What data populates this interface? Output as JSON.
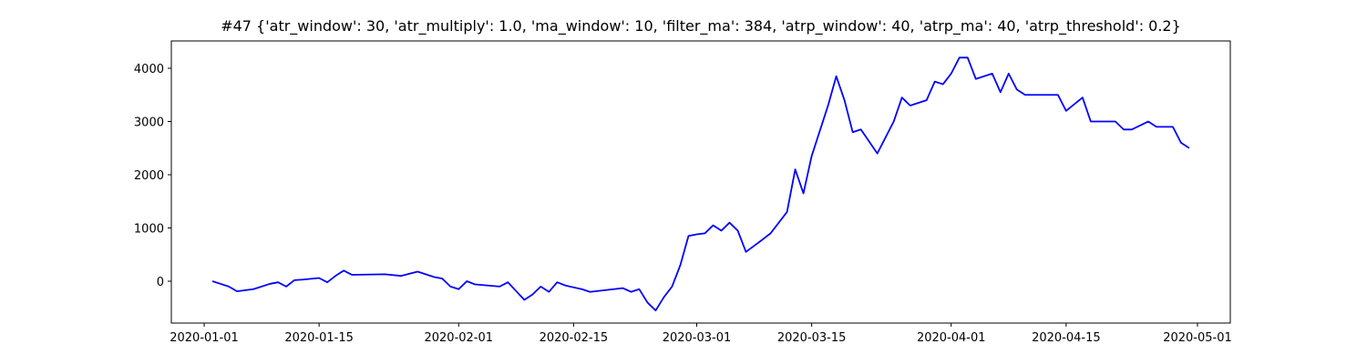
{
  "chart_data": {
    "type": "line",
    "title": "#47 {'atr_window': 30, 'atr_multiply': 1.0, 'ma_window': 10, 'filter_ma': 384, 'atrp_window': 40, 'atrp_ma': 40, 'atrp_threshold': 0.2}",
    "x": [
      "2020-01-02",
      "2020-01-03",
      "2020-01-04",
      "2020-01-05",
      "2020-01-07",
      "2020-01-08",
      "2020-01-09",
      "2020-01-10",
      "2020-01-11",
      "2020-01-12",
      "2020-01-13",
      "2020-01-15",
      "2020-01-16",
      "2020-01-17",
      "2020-01-18",
      "2020-01-19",
      "2020-01-23",
      "2020-01-25",
      "2020-01-27",
      "2020-01-29",
      "2020-01-30",
      "2020-01-31",
      "2020-02-01",
      "2020-02-02",
      "2020-02-03",
      "2020-02-06",
      "2020-02-07",
      "2020-02-09",
      "2020-02-10",
      "2020-02-11",
      "2020-02-12",
      "2020-02-13",
      "2020-02-14",
      "2020-02-16",
      "2020-02-17",
      "2020-02-21",
      "2020-02-22",
      "2020-02-23",
      "2020-02-24",
      "2020-02-25",
      "2020-02-26",
      "2020-02-27",
      "2020-02-28",
      "2020-02-29",
      "2020-03-01",
      "2020-03-02",
      "2020-03-03",
      "2020-03-04",
      "2020-03-05",
      "2020-03-06",
      "2020-03-07",
      "2020-03-09",
      "2020-03-10",
      "2020-03-12",
      "2020-03-13",
      "2020-03-14",
      "2020-03-15",
      "2020-03-17",
      "2020-03-18",
      "2020-03-19",
      "2020-03-20",
      "2020-03-21",
      "2020-03-23",
      "2020-03-24",
      "2020-03-25",
      "2020-03-26",
      "2020-03-27",
      "2020-03-29",
      "2020-03-30",
      "2020-03-31",
      "2020-04-01",
      "2020-04-02",
      "2020-04-03",
      "2020-04-04",
      "2020-04-06",
      "2020-04-07",
      "2020-04-08",
      "2020-04-09",
      "2020-04-10",
      "2020-04-14",
      "2020-04-15",
      "2020-04-17",
      "2020-04-18",
      "2020-04-21",
      "2020-04-22",
      "2020-04-23",
      "2020-04-25",
      "2020-04-26",
      "2020-04-28",
      "2020-04-29",
      "2020-04-30"
    ],
    "series": [
      {
        "color": "#0000ff",
        "values": [
          0,
          -50,
          -100,
          -190,
          -150,
          -100,
          -50,
          -20,
          -100,
          20,
          30,
          60,
          -20,
          100,
          200,
          120,
          130,
          100,
          180,
          80,
          50,
          -100,
          -150,
          0,
          -60,
          -100,
          -20,
          -350,
          -250,
          -100,
          -200,
          -20,
          -80,
          -150,
          -200,
          -130,
          -200,
          -150,
          -400,
          -550,
          -300,
          -100,
          300,
          850,
          880,
          900,
          1050,
          950,
          1100,
          950,
          550,
          780,
          900,
          1300,
          2100,
          1650,
          2350,
          3300,
          3850,
          3400,
          2800,
          2850,
          2400,
          2700,
          3000,
          3450,
          3300,
          3400,
          3750,
          3700,
          3900,
          4200,
          4200,
          3800,
          3900,
          3550,
          3900,
          3600,
          3500,
          3500,
          3200,
          3450,
          3000,
          3000,
          2850,
          2850,
          3000,
          2900,
          2900,
          2600,
          2500
        ]
      }
    ],
    "xlim": [
      "2019-12-28",
      "2020-05-05"
    ],
    "xticks": [
      "2020-01-01",
      "2020-01-15",
      "2020-02-01",
      "2020-02-15",
      "2020-03-01",
      "2020-03-15",
      "2020-04-01",
      "2020-04-15",
      "2020-05-01"
    ],
    "ylim": [
      -786,
      4513
    ],
    "yticks": [
      0,
      1000,
      2000,
      3000,
      4000
    ]
  }
}
